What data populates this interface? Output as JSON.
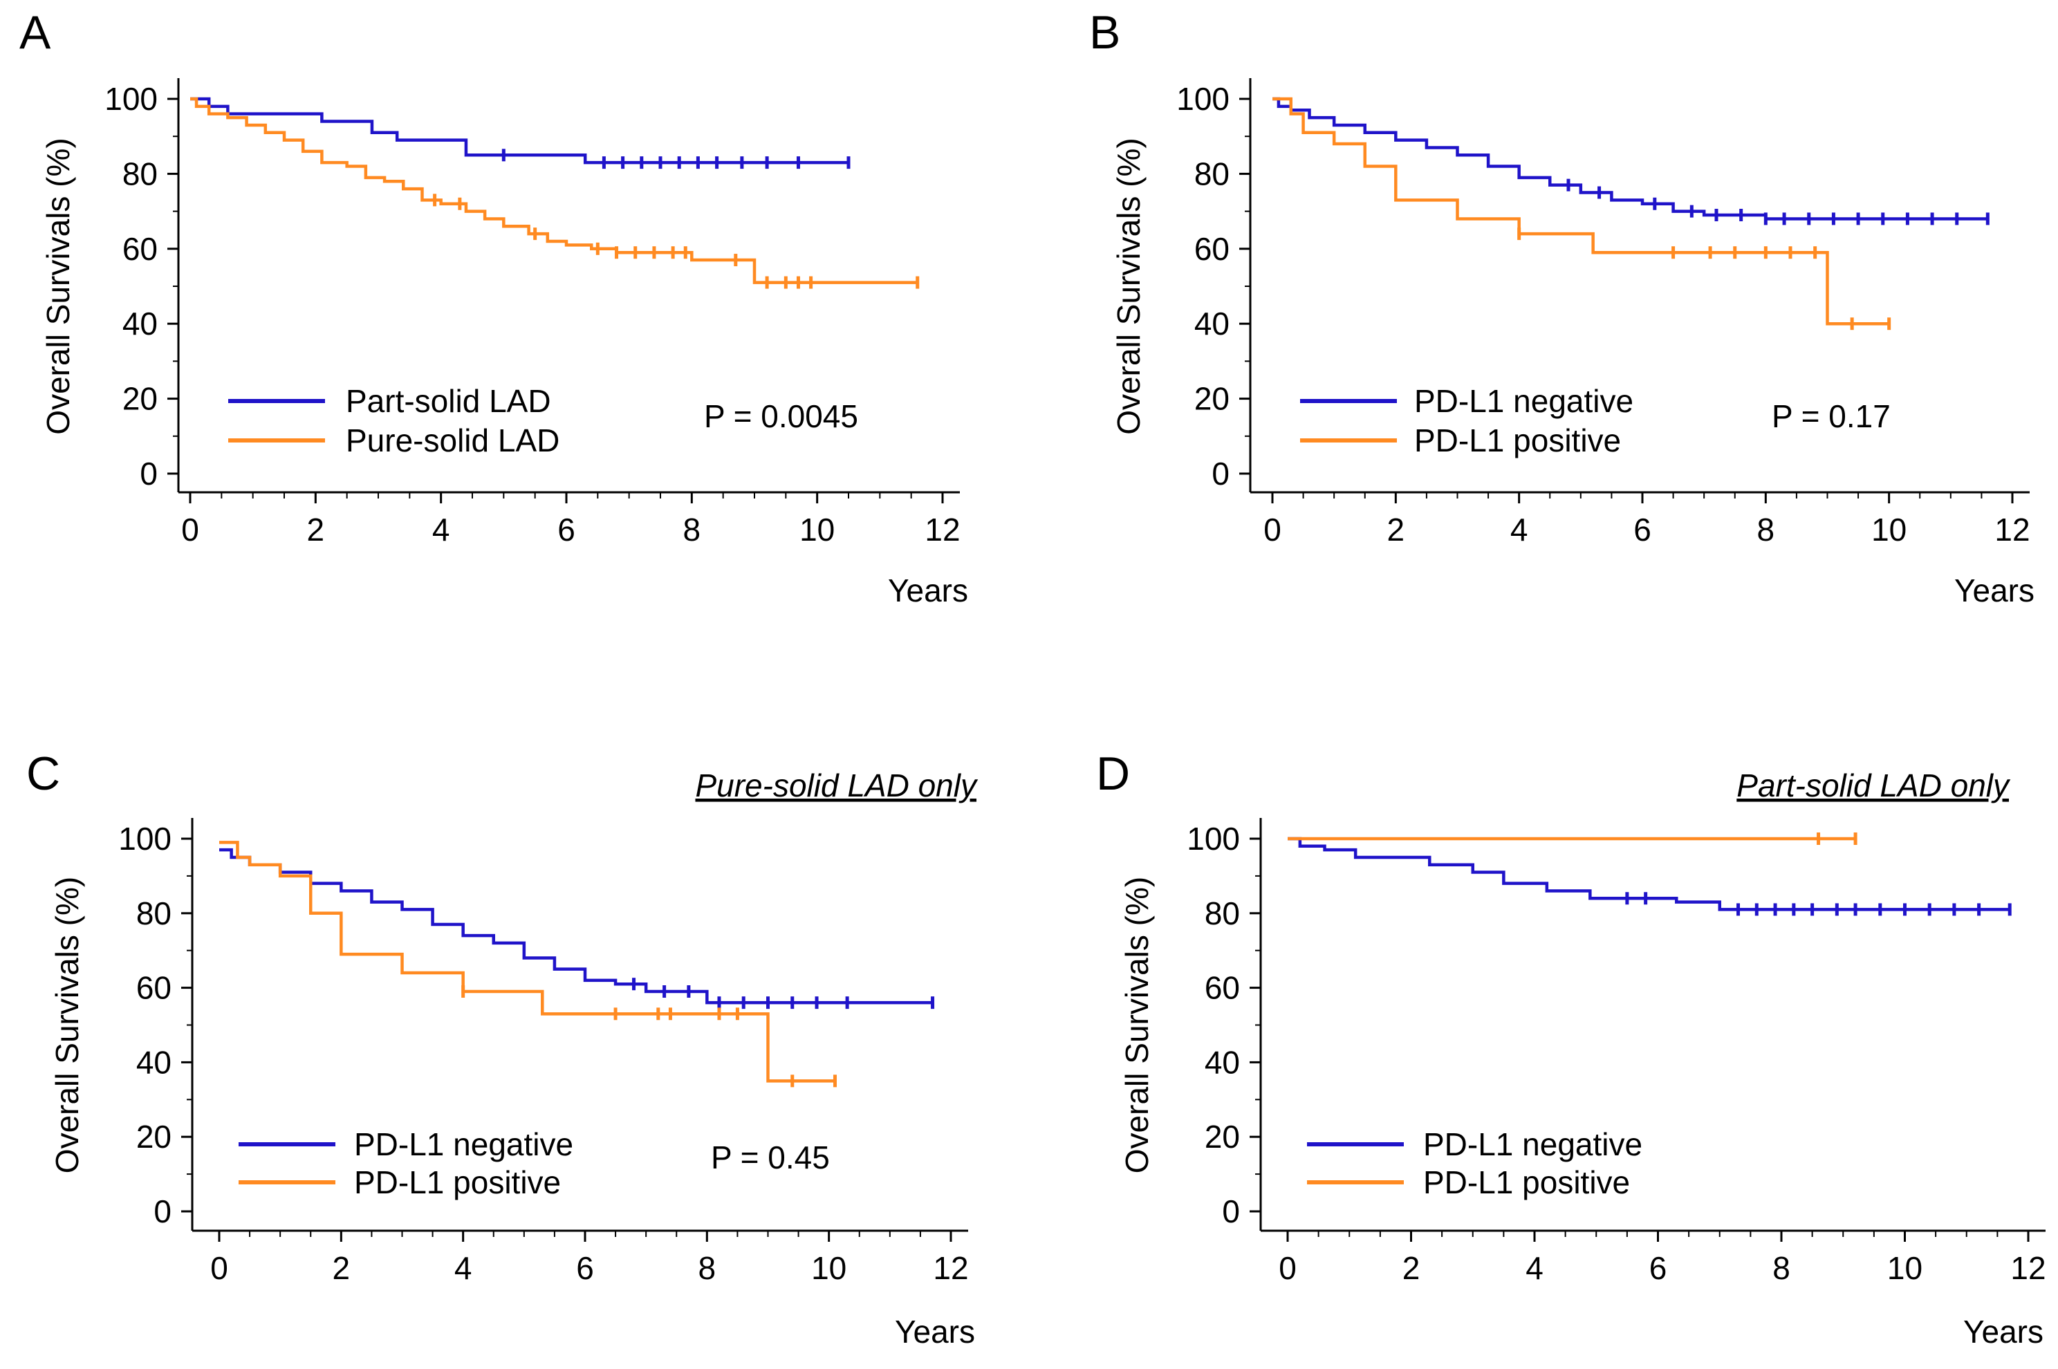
{
  "colors": {
    "negative": "#1f13c9",
    "positive": "#ff8a21",
    "axis": "#000000"
  },
  "chart_data": [
    {
      "type": "line",
      "panel": "A",
      "subtitle": "",
      "xlabel": "Years",
      "ylabel": "Overall Survivals (%)",
      "xlim": [
        0,
        12
      ],
      "ylim": [
        0,
        100
      ],
      "xticks": [
        0,
        2,
        4,
        6,
        8,
        10,
        12
      ],
      "yticks": [
        0,
        20,
        40,
        60,
        80,
        100
      ],
      "p_value": "P = 0.0045",
      "series": [
        {
          "name": "Part-solid LAD",
          "color": "negative",
          "x": [
            0,
            0.3,
            0.6,
            2.1,
            2.9,
            3.3,
            4.4,
            6.3,
            10.5
          ],
          "y": [
            100,
            98,
            96,
            94,
            91,
            89,
            85,
            83,
            83
          ],
          "censor": [
            5.0,
            6.6,
            6.9,
            7.2,
            7.5,
            7.8,
            8.1,
            8.4,
            8.8,
            9.2,
            9.7,
            10.5
          ]
        },
        {
          "name": "Pure-solid LAD",
          "color": "positive",
          "x": [
            0,
            0.1,
            0.3,
            0.6,
            0.9,
            1.2,
            1.5,
            1.8,
            2.1,
            2.5,
            2.8,
            3.1,
            3.4,
            3.7,
            4.0,
            4.4,
            4.7,
            5.0,
            5.4,
            5.7,
            6.0,
            6.4,
            6.8,
            7.2,
            8.0,
            8.5,
            9.0,
            11.6
          ],
          "y": [
            100,
            98,
            96,
            95,
            93,
            91,
            89,
            86,
            83,
            82,
            79,
            78,
            76,
            73,
            72,
            70,
            68,
            66,
            64,
            62,
            61,
            60,
            59,
            59,
            57,
            57,
            51,
            51
          ],
          "censor": [
            3.9,
            4.3,
            5.5,
            6.5,
            6.8,
            7.1,
            7.4,
            7.7,
            7.9,
            8.7,
            9.2,
            9.5,
            9.7,
            9.9,
            11.6
          ]
        }
      ]
    },
    {
      "type": "line",
      "panel": "B",
      "subtitle": "",
      "xlabel": "Years",
      "ylabel": "Overall Survivals (%)",
      "xlim": [
        0,
        12
      ],
      "ylim": [
        0,
        100
      ],
      "xticks": [
        0,
        2,
        4,
        6,
        8,
        10,
        12
      ],
      "yticks": [
        0,
        20,
        40,
        60,
        80,
        100
      ],
      "p_value": "P = 0.17",
      "series": [
        {
          "name": "PD-L1 negative",
          "color": "negative",
          "x": [
            0,
            0.1,
            0.3,
            0.6,
            1.0,
            1.5,
            2.0,
            2.5,
            3.0,
            3.5,
            4.0,
            4.5,
            5.0,
            5.5,
            6.0,
            6.5,
            7.0,
            7.5,
            8.0,
            8.5,
            11.6
          ],
          "y": [
            100,
            98,
            97,
            95,
            93,
            91,
            89,
            87,
            85,
            82,
            79,
            77,
            75,
            73,
            72,
            70,
            69,
            69,
            68,
            68,
            68
          ],
          "censor": [
            4.8,
            5.3,
            6.2,
            6.8,
            7.2,
            7.6,
            8.0,
            8.3,
            8.7,
            9.1,
            9.5,
            9.9,
            10.3,
            10.7,
            11.1,
            11.6
          ]
        },
        {
          "name": "PD-L1 positive",
          "color": "positive",
          "x": [
            0,
            0.3,
            0.5,
            1.0,
            1.5,
            2.0,
            3.0,
            4.0,
            5.2,
            9.0,
            10.0
          ],
          "y": [
            100,
            96,
            91,
            88,
            82,
            73,
            68,
            64,
            59,
            40,
            40
          ],
          "censor": [
            4.0,
            6.5,
            7.1,
            7.5,
            8.0,
            8.4,
            8.8,
            9.4,
            10.0
          ]
        }
      ]
    },
    {
      "type": "line",
      "panel": "C",
      "subtitle": "Pure-solid LAD only",
      "xlabel": "Years",
      "ylabel": "Overall Survivals (%)",
      "xlim": [
        0,
        12
      ],
      "ylim": [
        0,
        100
      ],
      "xticks": [
        0,
        2,
        4,
        6,
        8,
        10,
        12
      ],
      "yticks": [
        0,
        20,
        40,
        60,
        80,
        100
      ],
      "p_value": "P = 0.45",
      "series": [
        {
          "name": "PD-L1 negative",
          "color": "negative",
          "x": [
            0,
            0.2,
            0.5,
            1.0,
            1.5,
            2.0,
            2.5,
            3.0,
            3.5,
            4.0,
            4.5,
            5.0,
            5.5,
            6.0,
            6.5,
            7.0,
            8.0,
            11.7
          ],
          "y": [
            97,
            95,
            93,
            91,
            88,
            86,
            83,
            81,
            77,
            74,
            72,
            68,
            65,
            62,
            61,
            59,
            56,
            56
          ],
          "censor": [
            6.8,
            7.3,
            7.7,
            8.2,
            8.6,
            9.0,
            9.4,
            9.8,
            10.3,
            11.7
          ]
        },
        {
          "name": "PD-L1 positive",
          "color": "positive",
          "x": [
            0,
            0.3,
            0.5,
            1.0,
            1.5,
            2.0,
            3.0,
            4.0,
            5.3,
            9.0,
            10.1
          ],
          "y": [
            99,
            95,
            93,
            90,
            80,
            69,
            64,
            59,
            53,
            35,
            35
          ],
          "censor": [
            4.0,
            6.5,
            7.2,
            7.4,
            8.2,
            8.5,
            9.4,
            10.1
          ]
        }
      ]
    },
    {
      "type": "line",
      "panel": "D",
      "subtitle": "Part-solid LAD only",
      "xlabel": "Years",
      "ylabel": "Overall Survivals (%)",
      "xlim": [
        0,
        12
      ],
      "ylim": [
        0,
        100
      ],
      "xticks": [
        0,
        2,
        4,
        6,
        8,
        10,
        12
      ],
      "yticks": [
        0,
        20,
        40,
        60,
        80,
        100
      ],
      "p_value": "",
      "series": [
        {
          "name": "PD-L1 negative",
          "color": "negative",
          "x": [
            0,
            0.2,
            0.6,
            1.1,
            2.3,
            3.0,
            3.5,
            4.2,
            4.9,
            6.3,
            7.0,
            11.7
          ],
          "y": [
            100,
            98,
            97,
            95,
            93,
            91,
            88,
            86,
            84,
            83,
            81,
            81
          ],
          "censor": [
            5.5,
            5.8,
            7.3,
            7.6,
            7.9,
            8.2,
            8.5,
            8.9,
            9.2,
            9.6,
            10.0,
            10.4,
            10.8,
            11.2,
            11.7
          ]
        },
        {
          "name": "PD-L1 positive",
          "color": "positive",
          "x": [
            0,
            9.2
          ],
          "y": [
            100,
            100
          ],
          "censor": [
            8.6,
            9.2
          ]
        }
      ]
    }
  ]
}
